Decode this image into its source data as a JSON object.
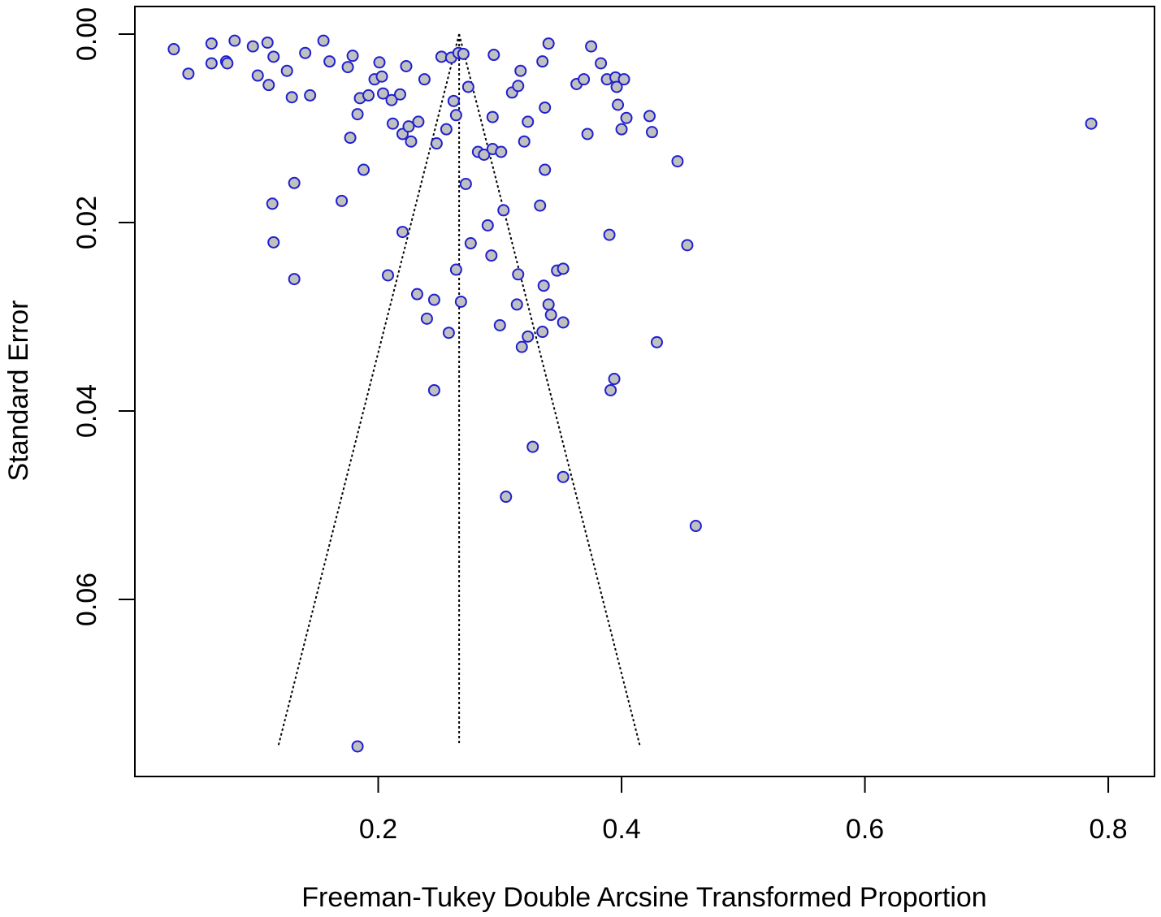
{
  "chart_data": {
    "type": "scatter",
    "subtype": "funnel-plot",
    "title": "",
    "xlabel": "Freeman-Tukey Double Arcsine Transformed Proportion",
    "ylabel": "Standard Error",
    "xlim": [
      0.0,
      0.838
    ],
    "ylim": [
      0.0,
      0.0783
    ],
    "y_reversed": true,
    "x_ticks": [
      "0.2",
      "0.4",
      "0.6",
      "0.8"
    ],
    "x_tick_values": [
      0.2,
      0.4,
      0.6,
      0.8
    ],
    "y_ticks": [
      "0.00",
      "0.02",
      "0.04",
      "0.06"
    ],
    "y_tick_values": [
      0.0,
      0.02,
      0.04,
      0.06
    ],
    "grid": false,
    "legend": "none",
    "summary_estimate": 0.2665,
    "funnel_base_se": 0.0755,
    "funnel_base_left": 0.118,
    "funnel_base_right": 0.415,
    "points": [
      [
        0.032,
        0.0016
      ],
      [
        0.044,
        0.0042
      ],
      [
        0.063,
        0.001
      ],
      [
        0.063,
        0.0031
      ],
      [
        0.075,
        0.0029
      ],
      [
        0.076,
        0.0031
      ],
      [
        0.082,
        0.0007
      ],
      [
        0.097,
        0.0013
      ],
      [
        0.101,
        0.0044
      ],
      [
        0.109,
        0.0009
      ],
      [
        0.11,
        0.0054
      ],
      [
        0.114,
        0.0024
      ],
      [
        0.125,
        0.0039
      ],
      [
        0.129,
        0.0067
      ],
      [
        0.131,
        0.0158
      ],
      [
        0.113,
        0.018
      ],
      [
        0.114,
        0.0221
      ],
      [
        0.131,
        0.026
      ],
      [
        0.14,
        0.002
      ],
      [
        0.144,
        0.0065
      ],
      [
        0.155,
        0.0007
      ],
      [
        0.16,
        0.0029
      ],
      [
        0.17,
        0.0177
      ],
      [
        0.175,
        0.0035
      ],
      [
        0.177,
        0.011
      ],
      [
        0.179,
        0.0023
      ],
      [
        0.183,
        0.0085
      ],
      [
        0.185,
        0.0068
      ],
      [
        0.188,
        0.0144
      ],
      [
        0.192,
        0.0065
      ],
      [
        0.197,
        0.0048
      ],
      [
        0.201,
        0.003
      ],
      [
        0.203,
        0.0045
      ],
      [
        0.204,
        0.0063
      ],
      [
        0.208,
        0.0256
      ],
      [
        0.211,
        0.007
      ],
      [
        0.212,
        0.0095
      ],
      [
        0.218,
        0.0064
      ],
      [
        0.22,
        0.021
      ],
      [
        0.22,
        0.0106
      ],
      [
        0.223,
        0.0034
      ],
      [
        0.225,
        0.0098
      ],
      [
        0.227,
        0.0114
      ],
      [
        0.232,
        0.0276
      ],
      [
        0.233,
        0.0093
      ],
      [
        0.238,
        0.0048
      ],
      [
        0.24,
        0.0302
      ],
      [
        0.246,
        0.0282
      ],
      [
        0.246,
        0.0378
      ],
      [
        0.248,
        0.0116
      ],
      [
        0.252,
        0.0024
      ],
      [
        0.256,
        0.0101
      ],
      [
        0.258,
        0.0317
      ],
      [
        0.26,
        0.0025
      ],
      [
        0.262,
        0.0071
      ],
      [
        0.264,
        0.0086
      ],
      [
        0.264,
        0.025
      ],
      [
        0.266,
        0.002
      ],
      [
        0.268,
        0.0284
      ],
      [
        0.27,
        0.0021
      ],
      [
        0.272,
        0.0159
      ],
      [
        0.274,
        0.0056
      ],
      [
        0.276,
        0.0222
      ],
      [
        0.282,
        0.0125
      ],
      [
        0.287,
        0.0128
      ],
      [
        0.29,
        0.0203
      ],
      [
        0.293,
        0.0235
      ],
      [
        0.294,
        0.0122
      ],
      [
        0.294,
        0.0088
      ],
      [
        0.295,
        0.0022
      ],
      [
        0.3,
        0.0309
      ],
      [
        0.301,
        0.0125
      ],
      [
        0.303,
        0.0187
      ],
      [
        0.305,
        0.0491
      ],
      [
        0.31,
        0.0062
      ],
      [
        0.314,
        0.0287
      ],
      [
        0.315,
        0.0255
      ],
      [
        0.315,
        0.0055
      ],
      [
        0.317,
        0.0039
      ],
      [
        0.318,
        0.0332
      ],
      [
        0.32,
        0.0114
      ],
      [
        0.323,
        0.0093
      ],
      [
        0.323,
        0.0321
      ],
      [
        0.327,
        0.0438
      ],
      [
        0.333,
        0.0182
      ],
      [
        0.335,
        0.0029
      ],
      [
        0.335,
        0.0316
      ],
      [
        0.336,
        0.0267
      ],
      [
        0.337,
        0.0078
      ],
      [
        0.337,
        0.0144
      ],
      [
        0.34,
        0.001
      ],
      [
        0.34,
        0.0287
      ],
      [
        0.342,
        0.0298
      ],
      [
        0.347,
        0.0251
      ],
      [
        0.352,
        0.0249
      ],
      [
        0.352,
        0.0306
      ],
      [
        0.352,
        0.047
      ],
      [
        0.363,
        0.0053
      ],
      [
        0.369,
        0.0048
      ],
      [
        0.372,
        0.0106
      ],
      [
        0.375,
        0.0013
      ],
      [
        0.383,
        0.0031
      ],
      [
        0.388,
        0.0048
      ],
      [
        0.39,
        0.0213
      ],
      [
        0.391,
        0.0378
      ],
      [
        0.394,
        0.0366
      ],
      [
        0.395,
        0.0046
      ],
      [
        0.396,
        0.0056
      ],
      [
        0.397,
        0.0075
      ],
      [
        0.4,
        0.0101
      ],
      [
        0.402,
        0.0048
      ],
      [
        0.404,
        0.0089
      ],
      [
        0.423,
        0.0087
      ],
      [
        0.425,
        0.0104
      ],
      [
        0.429,
        0.0327
      ],
      [
        0.446,
        0.0135
      ],
      [
        0.454,
        0.0224
      ],
      [
        0.461,
        0.0522
      ],
      [
        0.786,
        0.0095
      ],
      [
        0.183,
        0.0756
      ]
    ]
  }
}
